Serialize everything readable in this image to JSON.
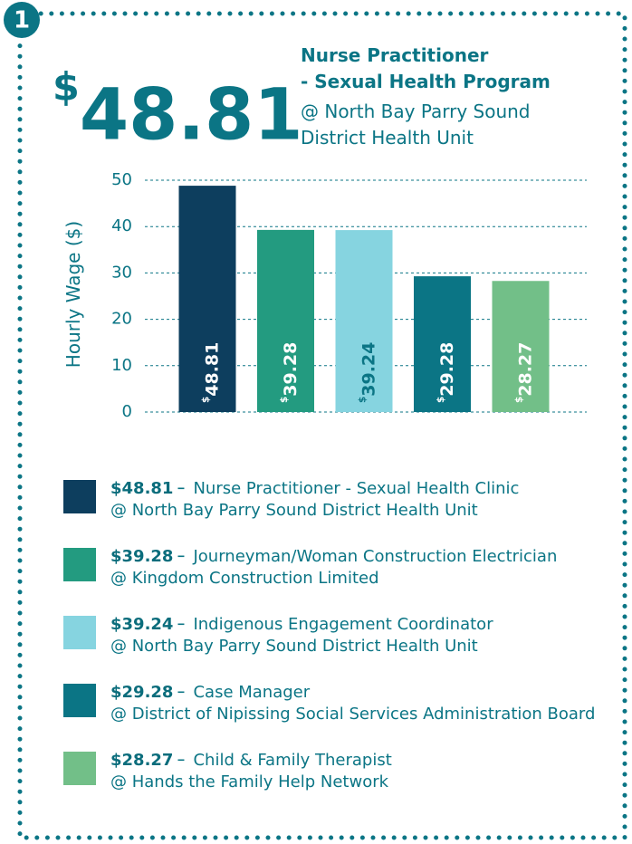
{
  "badge": "1",
  "chart_data": {
    "type": "bar",
    "title_lines": [
      "Nurse Practitioner",
      "- Sexual Health Program"
    ],
    "subtitle_lines": [
      "@ North Bay Parry Sound",
      "District Health Unit"
    ],
    "y_label": "Hourly Wage ($)",
    "ylim": [
      0,
      50
    ],
    "yticks": [
      0,
      10,
      20,
      30,
      40,
      50
    ],
    "grid": true,
    "series": [
      {
        "name": "Nurse Practitioner - Sexual Health Clinic",
        "employer": "@ North Bay Parry Sound District Health Unit",
        "color": "#0d3e5e",
        "values": [
          48.81
        ],
        "value_labels": [
          "$48.81"
        ]
      },
      {
        "name": "Journeyman/Woman Construction Electrician",
        "employer": "@ Kingdom Construction Limited",
        "color": "#239b80",
        "values": [
          39.28
        ],
        "value_labels": [
          "$39.28"
        ]
      },
      {
        "name": "Indigenous Engagement Coordinator",
        "employer": "@ North Bay Parry Sound District Health Unit",
        "color": "#86d4e0",
        "values": [
          39.24
        ],
        "value_labels": [
          "$39.24"
        ]
      },
      {
        "name": "Case Manager",
        "employer": "@ District of Nipissing Social Services Administration Board",
        "color": "#0b7585",
        "values": [
          29.28
        ],
        "value_labels": [
          "$29.28"
        ]
      },
      {
        "name": "Child & Family Therapist",
        "employer": "@ Hands the Family Help Network",
        "color": "#72bf88",
        "values": [
          28.27
        ],
        "value_labels": [
          "$28.27"
        ]
      }
    ]
  }
}
